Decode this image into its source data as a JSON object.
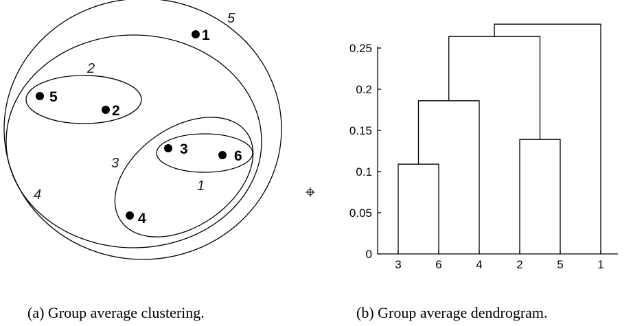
{
  "clustering": {
    "caption": "(a) Group average clustering.",
    "points": [
      {
        "id": "1",
        "label": "1"
      },
      {
        "id": "2",
        "label": "2"
      },
      {
        "id": "3",
        "label": "3"
      },
      {
        "id": "4",
        "label": "4"
      },
      {
        "id": "5",
        "label": "5"
      },
      {
        "id": "6",
        "label": "6"
      }
    ],
    "cluster_labels": [
      "1",
      "2",
      "3",
      "4",
      "5"
    ]
  },
  "dendrogram": {
    "caption": "(b) Group average dendrogram.",
    "leaves": [
      "3",
      "6",
      "4",
      "2",
      "5",
      "1"
    ],
    "y_ticks": [
      "0",
      "0.05",
      "0.1",
      "0.15",
      "0.2",
      "0.25"
    ],
    "merges": [
      {
        "left": "3",
        "right": "6",
        "height": 0.109
      },
      {
        "left": "2",
        "right": "5",
        "height": 0.139
      },
      {
        "left": "3,6",
        "right": "4",
        "height": 0.186
      },
      {
        "left": "3,6,4",
        "right": "2,5",
        "height": 0.264
      },
      {
        "left": "3,6,4,2,5",
        "right": "1",
        "height": 0.279
      }
    ]
  },
  "pointer": {
    "icon": "crosshair-icon"
  }
}
